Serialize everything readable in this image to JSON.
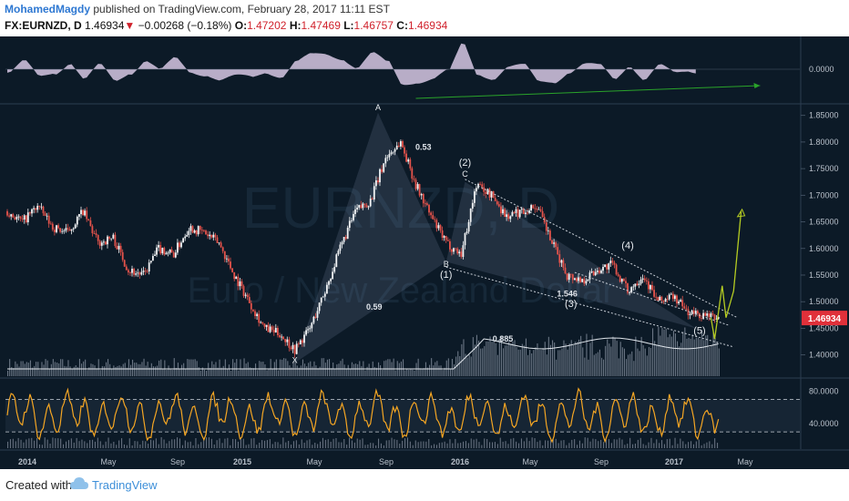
{
  "header": {
    "author": "MohamedMagdy",
    "published_text": "published on TradingView.com, February 28, 2017 11:11 EST",
    "symbol": "FX:EURNZD, D",
    "last_price": "1.46934",
    "change_arrow": "▼",
    "change": "−0.00268 (−0.18%)",
    "open_label": "O:",
    "open": "1.47202",
    "high_label": "H:",
    "high": "1.47469",
    "low_label": "L:",
    "low": "1.46757",
    "close_label": "C:",
    "close": "1.46934"
  },
  "watermark": {
    "big": "EURNZD, D",
    "sub": "Euro / New Zealand Dollar"
  },
  "colors": {
    "background": "#0c1a27",
    "bear_candle": "#e5534b",
    "bull_candle": "#f2f4f6",
    "price_badge": "#e0303a",
    "oscillator": "#f5a623",
    "histogram": "#d7c8e4",
    "projection": "#b5cc22",
    "trend_arrow": "#2aa32a",
    "volume": "#8a94a4"
  },
  "chart_data": [
    {
      "type": "area",
      "name": "histogram oscillator",
      "y_tick_labels": [
        "0.0000"
      ],
      "zero_level": 0
    },
    {
      "type": "line",
      "name": "EURNZD daily price",
      "x_tick_labels": [
        "2014",
        "May",
        "Sep",
        "2015",
        "May",
        "Sep",
        "2016",
        "May",
        "Sep",
        "2017",
        "May"
      ],
      "y_tick_labels": [
        "1.85000",
        "1.80000",
        "1.75000",
        "1.70000",
        "1.65000",
        "1.60000",
        "1.55000",
        "1.50000",
        "1.45000",
        "1.40000"
      ],
      "ylim": [
        1.36,
        1.87
      ],
      "last_price_label": "1.46934",
      "x": [
        0,
        4,
        8,
        12,
        16,
        20,
        24,
        28,
        32,
        36,
        40,
        44,
        48,
        52,
        56,
        60,
        64,
        68,
        72,
        76,
        80,
        84,
        88,
        92,
        96,
        100,
        104,
        108,
        112,
        116,
        120,
        124,
        128,
        132,
        136,
        140,
        144,
        148,
        152,
        156,
        160,
        164,
        168,
        172,
        176,
        180,
        186,
        192
      ],
      "y": [
        1.67,
        1.65,
        1.68,
        1.64,
        1.63,
        1.67,
        1.61,
        1.62,
        1.56,
        1.55,
        1.6,
        1.59,
        1.64,
        1.63,
        1.61,
        1.55,
        1.5,
        1.45,
        1.44,
        1.41,
        1.45,
        1.52,
        1.6,
        1.67,
        1.69,
        1.77,
        1.8,
        1.72,
        1.66,
        1.61,
        1.59,
        1.72,
        1.7,
        1.66,
        1.67,
        1.68,
        1.61,
        1.55,
        1.54,
        1.56,
        1.57,
        1.52,
        1.55,
        1.5,
        1.51,
        1.48,
        1.47,
        1.47
      ],
      "wave_labels": [
        {
          "label": "A",
          "x": 98,
          "y": 1.86
        },
        {
          "label": "X",
          "x": 76,
          "y": 1.385
        },
        {
          "label": "(1)",
          "x": 116,
          "y": 1.545
        },
        {
          "label": "B",
          "x": 116,
          "y": 1.565
        },
        {
          "label": "(2)",
          "x": 121,
          "y": 1.755
        },
        {
          "label": "C",
          "x": 121,
          "y": 1.735
        },
        {
          "label": "(3)",
          "x": 149,
          "y": 1.49
        },
        {
          "label": "(4)",
          "x": 164,
          "y": 1.6
        },
        {
          "label": "(5)",
          "x": 183,
          "y": 1.44
        }
      ],
      "ratio_labels": [
        {
          "label": "0.53",
          "x": 110,
          "y": 1.785
        },
        {
          "label": "0.59",
          "x": 97,
          "y": 1.485
        },
        {
          "label": "1.546",
          "x": 148,
          "y": 1.51
        },
        {
          "label": "0.885",
          "x": 131,
          "y": 1.425
        }
      ],
      "projection_path": {
        "x": [
          186,
          187,
          189,
          190,
          192,
          194
        ],
        "y": [
          1.47,
          1.43,
          1.53,
          1.47,
          1.52,
          1.67
        ]
      }
    },
    {
      "type": "line",
      "name": "oscillator",
      "y_tick_labels": [
        "80.0000",
        "40.0000"
      ],
      "ylim": [
        10,
        95
      ],
      "levels": [
        70,
        30
      ]
    }
  ],
  "footer": {
    "created_with": "Created with",
    "brand": "TradingView"
  }
}
